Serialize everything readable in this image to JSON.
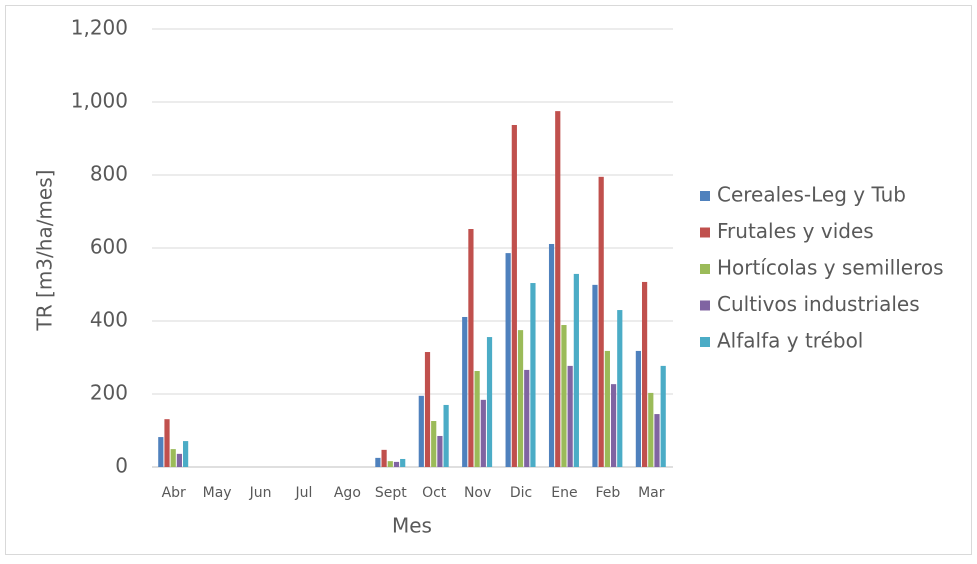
{
  "chart_data": {
    "type": "bar",
    "xlabel": "Mes",
    "ylabel": "TR [m3/ha/mes]",
    "categories": [
      "Abr",
      "May",
      "Jun",
      "Jul",
      "Ago",
      "Sept",
      "Oct",
      "Nov",
      "Dic",
      "Ene",
      "Feb",
      "Mar"
    ],
    "series": [
      {
        "name": "Cereales-Leg y Tub",
        "color": "#4f81bd",
        "values": [
          82,
          0,
          0,
          0,
          0,
          25,
          195,
          411,
          586,
          611,
          499,
          318
        ]
      },
      {
        "name": "Frutales y vides",
        "color": "#c0504d",
        "values": [
          131,
          0,
          0,
          0,
          0,
          47,
          315,
          652,
          937,
          975,
          795,
          507
        ]
      },
      {
        "name": "Hortícolas y semilleros",
        "color": "#9bbb59",
        "values": [
          49,
          0,
          0,
          0,
          0,
          16,
          126,
          263,
          375,
          389,
          318,
          203
        ]
      },
      {
        "name": "Cultivos industriales",
        "color": "#8064a2",
        "values": [
          36,
          0,
          0,
          0,
          0,
          14,
          85,
          184,
          266,
          277,
          227,
          145
        ]
      },
      {
        "name": "Alfalfa y trébol",
        "color": "#4bacc6",
        "values": [
          71,
          0,
          0,
          0,
          0,
          22,
          170,
          356,
          504,
          529,
          430,
          277
        ]
      }
    ],
    "ylim": [
      0,
      1200
    ],
    "yticks": [
      0,
      200,
      400,
      600,
      800,
      {
        "value": 1000,
        "label": "1,000"
      },
      {
        "value": 1200,
        "label": "1,200"
      }
    ],
    "grid": true,
    "legend": "right"
  }
}
